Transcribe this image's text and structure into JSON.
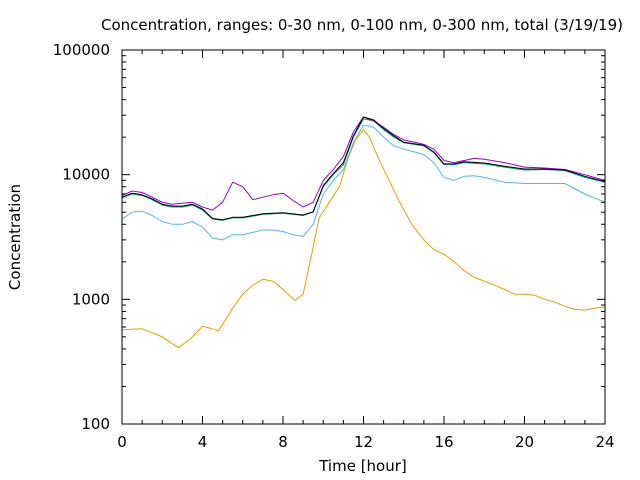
{
  "chart_data": {
    "type": "line",
    "title": "Concentration, ranges: 0-30 nm, 0-100 nm, 0-300 nm, total (3/19/19)",
    "xlabel": "Time [hour]",
    "ylabel": "Concentration",
    "xlim": [
      0,
      24
    ],
    "ylim": [
      100,
      100000
    ],
    "yscale": "log",
    "grid": false,
    "legend": "none",
    "x_ticks": [
      0,
      4,
      8,
      12,
      16,
      20,
      24
    ],
    "x_tick_labels": [
      "0",
      "4",
      "8",
      "12",
      "16",
      "20",
      "24"
    ],
    "y_ticks": [
      100,
      1000,
      10000,
      100000
    ],
    "y_tick_labels": [
      "100",
      "1000",
      "10000",
      "100000"
    ],
    "series": [
      {
        "color": "#e69f00",
        "x": [
          0,
          1,
          2,
          2.8,
          3.4,
          4.0,
          4.8,
          5.5,
          6.0,
          6.5,
          7.0,
          7.5,
          8.0,
          8.6,
          9.0,
          9.4,
          9.8,
          10.3,
          10.8,
          11.2,
          11.6,
          12.0,
          12.3,
          12.7,
          13.2,
          13.8,
          14.4,
          15.0,
          15.5,
          16.0,
          16.5,
          17.0,
          17.5,
          18.0,
          18.5,
          19.0,
          19.5,
          20.0,
          20.5,
          21.0,
          21.5,
          22.0,
          22.5,
          23.0,
          23.5,
          24.0
        ],
        "values": [
          570,
          580,
          500,
          410,
          480,
          610,
          560,
          850,
          1100,
          1300,
          1450,
          1400,
          1200,
          980,
          1100,
          2200,
          4500,
          6000,
          8000,
          13000,
          19000,
          23000,
          20000,
          14000,
          9500,
          6000,
          4000,
          3000,
          2500,
          2300,
          2000,
          1700,
          1500,
          1400,
          1300,
          1200,
          1100,
          1100,
          1080,
          1000,
          950,
          880,
          830,
          820,
          850,
          870
        ]
      },
      {
        "color": "#56b4e9",
        "x": [
          0,
          0.5,
          1,
          1.5,
          2,
          2.5,
          3,
          3.5,
          4,
          4.5,
          5,
          5.5,
          6,
          7,
          7.5,
          8,
          8.5,
          9,
          9.5,
          10,
          10.5,
          11,
          11.5,
          12,
          12.5,
          13,
          13.5,
          14,
          15,
          15.5,
          16,
          16.5,
          17,
          17.5,
          18,
          19,
          20,
          21,
          22,
          23,
          24
        ],
        "values": [
          4400,
          5000,
          5100,
          4700,
          4200,
          4000,
          4000,
          4200,
          3800,
          3100,
          3000,
          3300,
          3300,
          3600,
          3600,
          3500,
          3300,
          3200,
          4000,
          7000,
          9000,
          11000,
          18000,
          25000,
          24000,
          20000,
          17000,
          16000,
          14500,
          12500,
          9500,
          9000,
          9700,
          9800,
          9500,
          8700,
          8500,
          8500,
          8500,
          7000,
          6000
        ]
      },
      {
        "color": "#009e73",
        "x": [
          0,
          0.5,
          1,
          1.5,
          2,
          2.5,
          3,
          3.5,
          4,
          4.5,
          5,
          5.5,
          6,
          7,
          8,
          9,
          9.5,
          10,
          10.5,
          11,
          11.5,
          12,
          12.5,
          13,
          13.5,
          14,
          15,
          15.5,
          16,
          16.5,
          17,
          18,
          19,
          20,
          21,
          22,
          23,
          24
        ],
        "values": [
          6500,
          7000,
          6800,
          6300,
          5700,
          5500,
          5500,
          5700,
          5200,
          4400,
          4300,
          4500,
          4500,
          4800,
          4900,
          4700,
          5000,
          8000,
          10000,
          12000,
          20000,
          28000,
          27000,
          23000,
          20000,
          18000,
          17000,
          15000,
          12000,
          12000,
          12500,
          12200,
          11500,
          10900,
          11000,
          10800,
          9500,
          8700
        ]
      },
      {
        "color": "#9400d3",
        "x": [
          0,
          0.5,
          1,
          1.5,
          2,
          2.5,
          3,
          3.5,
          4,
          4.5,
          5,
          5.5,
          6,
          6.5,
          7,
          7.5,
          8,
          8.5,
          9,
          9.5,
          10,
          10.5,
          11,
          11.5,
          12,
          12.5,
          13,
          13.5,
          14,
          15,
          15.5,
          16,
          16.5,
          17,
          17.5,
          18,
          19,
          20,
          21,
          22,
          23,
          24
        ],
        "values": [
          6800,
          7400,
          7200,
          6600,
          6000,
          5800,
          5900,
          6000,
          5500,
          5200,
          6000,
          8700,
          8000,
          6300,
          6600,
          6900,
          7100,
          6200,
          5500,
          6000,
          9000,
          11000,
          14000,
          22000,
          29000,
          27000,
          24000,
          21000,
          19000,
          17500,
          16000,
          13000,
          12500,
          13000,
          13500,
          13300,
          12500,
          11500,
          11300,
          11000,
          10000,
          9000
        ]
      },
      {
        "color": "#000000",
        "x": [
          0,
          0.5,
          1,
          1.5,
          2,
          2.5,
          3,
          3.5,
          4,
          4.5,
          5,
          5.5,
          6,
          7,
          8,
          9,
          9.5,
          10,
          10.5,
          11,
          11.5,
          12,
          12.5,
          13,
          13.5,
          14,
          15,
          15.5,
          16,
          16.5,
          17,
          18,
          19,
          20,
          21,
          22,
          23,
          24
        ],
        "values": [
          6600,
          7100,
          6900,
          6400,
          5800,
          5600,
          5600,
          5800,
          5300,
          4450,
          4350,
          4550,
          4550,
          4850,
          4950,
          4750,
          5050,
          8200,
          10200,
          12500,
          20500,
          29000,
          27500,
          23500,
          20500,
          18200,
          17200,
          15200,
          12200,
          12200,
          12700,
          12400,
          11700,
          11100,
          11100,
          10900,
          9700,
          8800
        ]
      }
    ]
  }
}
